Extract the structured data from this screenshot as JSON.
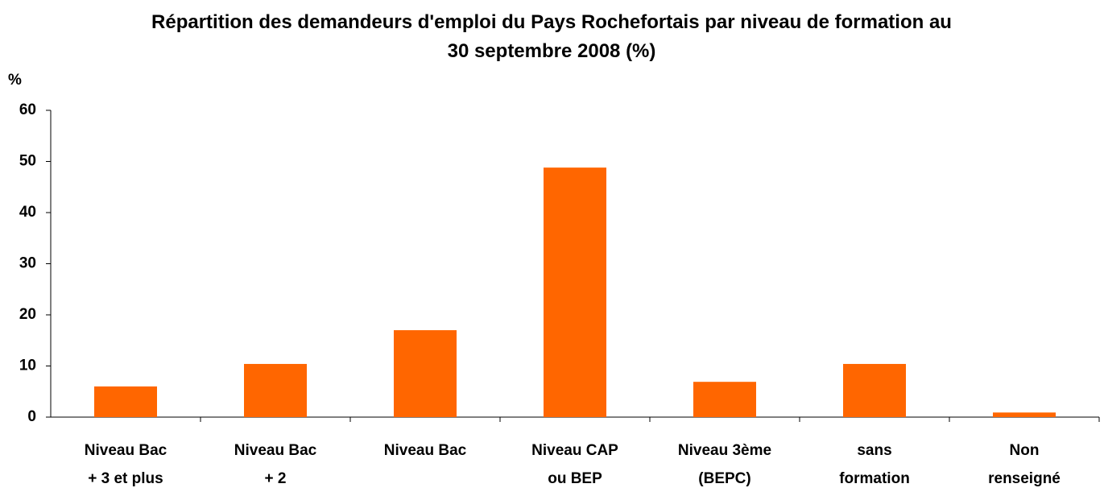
{
  "chart_data": {
    "type": "bar",
    "title": "Répartition des demandeurs d'emploi du Pays Rochefortais par niveau de formation au 30 septembre 2008 (%)",
    "y_label": "%",
    "categories": [
      "Niveau Bac\n+ 3 et plus",
      "Niveau Bac\n+ 2",
      "Niveau Bac",
      "Niveau CAP\nou BEP",
      "Niveau 3ème\n(BEPC)",
      "sans\nformation",
      "Non\nrenseigné"
    ],
    "values": [
      6.0,
      10.4,
      17.0,
      48.8,
      6.9,
      10.4,
      0.9
    ],
    "color": "#ff6600",
    "ylim": [
      0,
      60
    ],
    "yticks": [
      0,
      10,
      20,
      30,
      40,
      50,
      60
    ],
    "grid": false
  }
}
